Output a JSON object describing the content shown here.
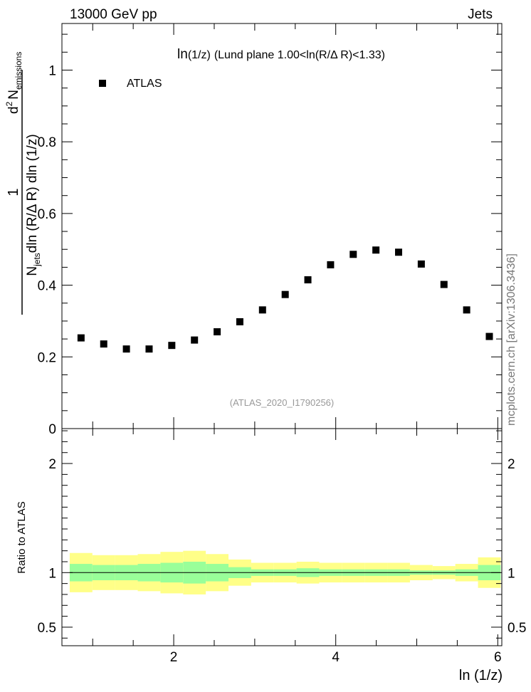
{
  "header": {
    "left": "13000 GeV pp",
    "right": "Jets"
  },
  "side_label": "mcplots.cern.ch [arXiv:1306.3436]",
  "chart_data": [
    {
      "type": "scatter",
      "title": "ln(1/z) (Lund plane 1.00<ln(R/Δ R)<1.33)",
      "title_parts": {
        "main": "ln",
        "paren": "(1/z)",
        "rest": "(Lund plane 1.00<ln(R/Δ R)<1.33)"
      },
      "ylabel_parts": {
        "one": "1",
        "d2": "d",
        "exp": "2",
        "N": "N",
        "sub_em": "emissions",
        "Njets": "N",
        "sub_jets": "jets",
        "den_rest": "dln (R/Δ R) dln (1/z)"
      },
      "watermark": "(ATLAS_2020_I1790256)",
      "legend": "ATLAS",
      "xlim": [
        0.62,
        6.05
      ],
      "ylim": [
        0,
        1.13
      ],
      "y_ticks": [
        {
          "v": 0,
          "label": "0"
        },
        {
          "v": 0.2,
          "label": "0.2"
        },
        {
          "v": 0.4,
          "label": "0.4"
        },
        {
          "v": 0.6,
          "label": "0.6"
        },
        {
          "v": 0.8,
          "label": "0.8"
        },
        {
          "v": 1,
          "label": "1"
        }
      ],
      "series": [
        {
          "name": "ATLAS",
          "x": [
            0.856,
            1.136,
            1.416,
            1.696,
            1.976,
            2.256,
            2.536,
            2.816,
            3.096,
            3.376,
            3.656,
            3.936,
            4.216,
            4.496,
            4.776,
            5.056,
            5.336,
            5.616,
            5.896
          ],
          "y": [
            0.253,
            0.236,
            0.222,
            0.222,
            0.232,
            0.247,
            0.27,
            0.298,
            0.331,
            0.374,
            0.415,
            0.457,
            0.486,
            0.498,
            0.492,
            0.459,
            0.402,
            0.331,
            0.257
          ]
        }
      ]
    },
    {
      "type": "area",
      "ylabel": "Ratio to ATLAS",
      "xlabel": "ln (1/z)",
      "xlim": [
        0.62,
        6.05
      ],
      "ylim": [
        0.33,
        2.32
      ],
      "x_ticks": [
        {
          "v": 2,
          "label": "2"
        },
        {
          "v": 4,
          "label": "4"
        },
        {
          "v": 6,
          "label": "6"
        }
      ],
      "y_ticks": [
        {
          "v": 0.5,
          "label": "0.5"
        },
        {
          "v": 1,
          "label": "1"
        },
        {
          "v": 2,
          "label": "2"
        }
      ],
      "bin_edges": [
        0.716,
        0.996,
        1.276,
        1.556,
        1.836,
        2.116,
        2.396,
        2.676,
        2.956,
        3.236,
        3.516,
        3.796,
        4.076,
        4.356,
        4.636,
        4.916,
        5.196,
        5.476,
        5.756,
        6.036
      ],
      "band_inner": {
        "lo": [
          0.92,
          0.93,
          0.93,
          0.92,
          0.91,
          0.9,
          0.92,
          0.95,
          0.97,
          0.97,
          0.96,
          0.97,
          0.97,
          0.97,
          0.97,
          0.98,
          0.98,
          0.97,
          0.93
        ],
        "hi": [
          1.08,
          1.07,
          1.07,
          1.08,
          1.09,
          1.1,
          1.08,
          1.05,
          1.03,
          1.03,
          1.04,
          1.03,
          1.03,
          1.03,
          1.03,
          1.02,
          1.02,
          1.03,
          1.07
        ]
      },
      "band_outer": {
        "lo": [
          0.82,
          0.84,
          0.84,
          0.83,
          0.81,
          0.8,
          0.83,
          0.88,
          0.91,
          0.91,
          0.9,
          0.91,
          0.91,
          0.91,
          0.91,
          0.93,
          0.94,
          0.92,
          0.86
        ],
        "hi": [
          1.18,
          1.16,
          1.16,
          1.17,
          1.19,
          1.2,
          1.17,
          1.12,
          1.09,
          1.09,
          1.1,
          1.09,
          1.09,
          1.09,
          1.09,
          1.07,
          1.06,
          1.08,
          1.14
        ]
      },
      "colors": {
        "inner": "#99ff99",
        "outer": "#ffff88"
      },
      "reference": 1
    }
  ]
}
